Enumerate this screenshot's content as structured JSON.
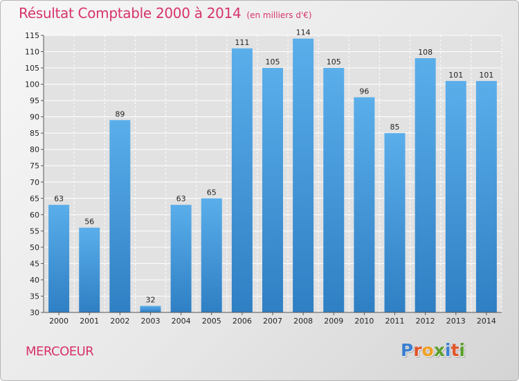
{
  "header": {
    "title": "Résultat Comptable 2000 à 2014",
    "subtitle": "(en milliers d'€)"
  },
  "footer": {
    "commune": "MERCOEUR",
    "logo_letters": [
      {
        "char": "P",
        "color": "#3a7fd0"
      },
      {
        "char": "r",
        "color": "#e0562a"
      },
      {
        "char": "o",
        "color": "#f0a020"
      },
      {
        "char": "x",
        "color": "#5aa02c"
      },
      {
        "char": "i",
        "color": "#3a7fd0"
      },
      {
        "char": "t",
        "color": "#e0562a"
      },
      {
        "char": "i",
        "color": "#5aa02c"
      }
    ]
  },
  "chart_data": {
    "type": "bar",
    "title": "Résultat Comptable 2000 à 2014",
    "subtitle": "(en milliers d'€)",
    "xlabel": "",
    "ylabel": "",
    "categories": [
      "2000",
      "2001",
      "2002",
      "2003",
      "2004",
      "2005",
      "2006",
      "2007",
      "2008",
      "2009",
      "2010",
      "2011",
      "2012",
      "2013",
      "2014"
    ],
    "values": [
      63,
      56,
      89,
      32,
      63,
      65,
      111,
      105,
      114,
      105,
      96,
      85,
      108,
      101,
      101
    ],
    "ylim": [
      30,
      115
    ],
    "yticks": [
      30,
      35,
      40,
      45,
      50,
      55,
      60,
      65,
      70,
      75,
      80,
      85,
      90,
      95,
      100,
      105,
      110,
      115
    ],
    "grid": true,
    "legend": "none",
    "bar_color": "#4a9ee0",
    "plot_bg": "#e2e2e2"
  }
}
